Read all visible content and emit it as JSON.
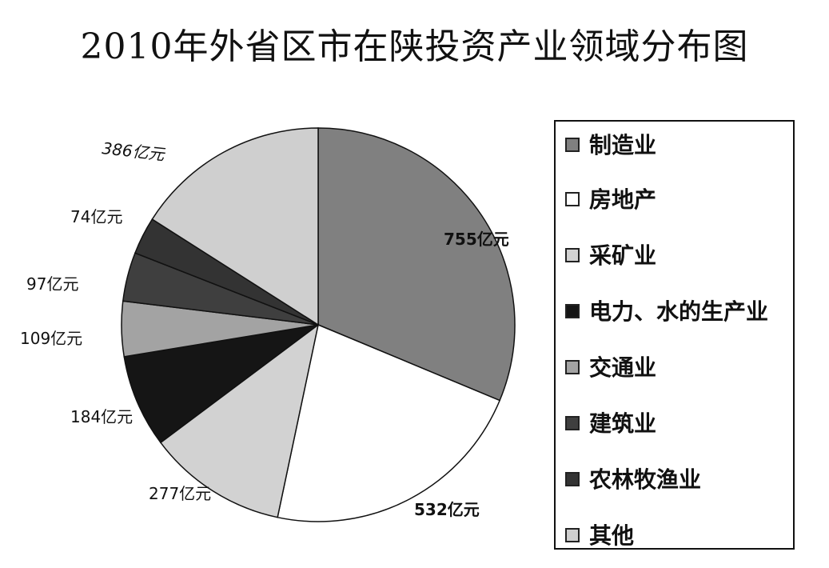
{
  "title": "2010年外省区市在陕投资产业领域分布图",
  "chart_data": {
    "type": "pie",
    "title": "2010年外省区市在陕投资产业领域分布图",
    "unit": "亿元",
    "legend_position": "right",
    "slices": [
      {
        "label": "制造业",
        "value": 755,
        "value_label": "755亿元",
        "color": "#808080"
      },
      {
        "label": "房地产",
        "value": 532,
        "value_label": "532亿元",
        "color": "#ffffff"
      },
      {
        "label": "采矿业",
        "value": 277,
        "value_label": "277亿元",
        "color": "#d2d2d2"
      },
      {
        "label": "电力、水的生产业",
        "value": 184,
        "value_label": "184亿元",
        "color": "#151515"
      },
      {
        "label": "交通业",
        "value": 109,
        "value_label": "109亿元",
        "color": "#a3a3a3"
      },
      {
        "label": "建筑业",
        "value": 97,
        "value_label": "97亿元",
        "color": "#3f3f3f"
      },
      {
        "label": "农林牧渔业",
        "value": 74,
        "value_label": "74亿元",
        "color": "#333333"
      },
      {
        "label": "其他",
        "value": 386,
        "value_label": "386亿元",
        "color": "#cfcfcf"
      }
    ]
  }
}
